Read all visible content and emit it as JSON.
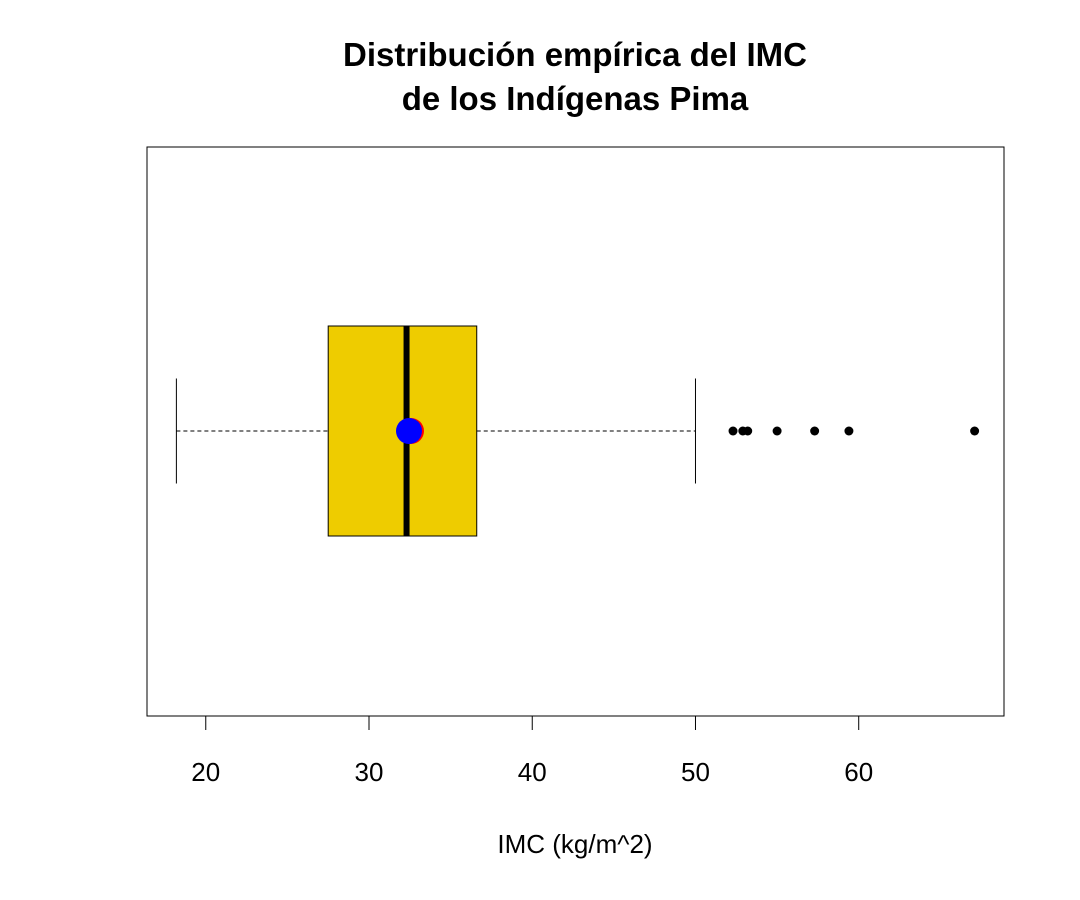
{
  "chart_data": {
    "type": "boxplot",
    "orientation": "horizontal",
    "title_lines": [
      "Distribución empírica del IMC",
      "de los Indígenas Pima"
    ],
    "xlabel": "IMC (kg/m^2)",
    "ylabel": "",
    "xlim": [
      16.4,
      68.9
    ],
    "xticks": [
      20,
      30,
      40,
      50,
      60
    ],
    "grid": false,
    "box": {
      "whisker_low": 18.2,
      "q1": 27.5,
      "median": 32.3,
      "q3": 36.6,
      "whisker_high": 50.0,
      "mean": 32.45,
      "outliers": [
        52.3,
        52.9,
        53.2,
        55.0,
        57.3,
        59.4,
        67.1
      ]
    },
    "colors": {
      "box_fill": "#EECC00",
      "median_line": "#000000",
      "mean_point": "#0000FF",
      "mean_point_edge": "#FF0000",
      "outliers": "#000000"
    }
  }
}
